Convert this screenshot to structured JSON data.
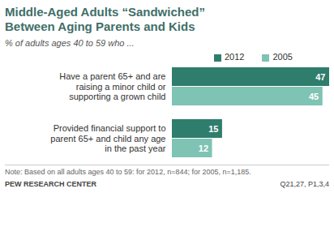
{
  "chart_data": {
    "type": "bar",
    "title": "Middle-Aged Adults “Sandwiched” Between Aging Parents and Kids",
    "subtitle": "% of adults ages 40 to 59 who ...",
    "categories": [
      "Have a parent 65+ and are raising a minor child or supporting a grown child",
      "Provided financial support to parent 65+ and child any age in the past year"
    ],
    "series": [
      {
        "name": "2012",
        "color": "#2f7d6d",
        "values": [
          47,
          15
        ]
      },
      {
        "name": "2005",
        "color": "#7fc3b4",
        "values": [
          45,
          12
        ]
      }
    ],
    "orientation": "horizontal",
    "data_labels": true,
    "tick_labels": "y",
    "legend": "top",
    "xlim": [
      0,
      47
    ],
    "note": "Note: Based on all adults ages 40 to 59: for 2012, n=844; for 2005, n=1,185.",
    "source": "PEW RESEARCH CENTER",
    "annotations": [
      "Q21,27, P1,3,4"
    ]
  }
}
